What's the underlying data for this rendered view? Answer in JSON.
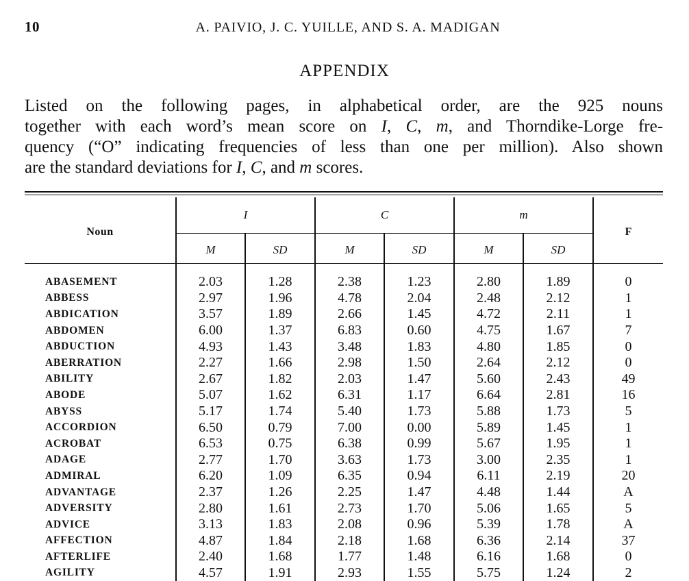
{
  "header": {
    "page_number": "10",
    "authors": "A. PAIVIO, J. C. YUILLE, AND S. A. MADIGAN"
  },
  "section_title": "APPENDIX",
  "intro": {
    "line1": "Listed on the following pages, in alphabetical order, are the 925 nouns",
    "line2_a": "together with each word’s mean score on ",
    "line2_i": "I",
    "line2_b": ", ",
    "line2_c": "C",
    "line2_d": ", ",
    "line2_m": "m",
    "line2_e": ", and Thorndike-Lorge fre-",
    "line3": "quency (“O” indicating frequencies of less than one per million).  Also shown",
    "line4_a": "are the standard deviations for ",
    "line4_i": "I",
    "line4_b": ", ",
    "line4_c": "C",
    "line4_d": ", and ",
    "line4_m": "m",
    "line4_e": " scores."
  },
  "table": {
    "noun_header": "Noun",
    "groups": [
      "I",
      "C",
      "m"
    ],
    "sub_m": "M",
    "sub_sd": "SD",
    "f_header": "F",
    "rows": [
      {
        "noun": "ABASEMENT",
        "i_m": "2.03",
        "i_sd": "1.28",
        "c_m": "2.38",
        "c_sd": "1.23",
        "m_m": "2.80",
        "m_sd": "1.89",
        "f": "0"
      },
      {
        "noun": "ABBESS",
        "i_m": "2.97",
        "i_sd": "1.96",
        "c_m": "4.78",
        "c_sd": "2.04",
        "m_m": "2.48",
        "m_sd": "2.12",
        "f": "1"
      },
      {
        "noun": "ABDICATION",
        "i_m": "3.57",
        "i_sd": "1.89",
        "c_m": "2.66",
        "c_sd": "1.45",
        "m_m": "4.72",
        "m_sd": "2.11",
        "f": "1"
      },
      {
        "noun": "ABDOMEN",
        "i_m": "6.00",
        "i_sd": "1.37",
        "c_m": "6.83",
        "c_sd": "0.60",
        "m_m": "4.75",
        "m_sd": "1.67",
        "f": "7"
      },
      {
        "noun": "ABDUCTION",
        "i_m": "4.93",
        "i_sd": "1.43",
        "c_m": "3.48",
        "c_sd": "1.83",
        "m_m": "4.80",
        "m_sd": "1.85",
        "f": "0"
      },
      {
        "noun": "ABERRATION",
        "i_m": "2.27",
        "i_sd": "1.66",
        "c_m": "2.98",
        "c_sd": "1.50",
        "m_m": "2.64",
        "m_sd": "2.12",
        "f": "0"
      },
      {
        "noun": "ABILITY",
        "i_m": "2.67",
        "i_sd": "1.82",
        "c_m": "2.03",
        "c_sd": "1.47",
        "m_m": "5.60",
        "m_sd": "2.43",
        "f": "49"
      },
      {
        "noun": "ABODE",
        "i_m": "5.07",
        "i_sd": "1.62",
        "c_m": "6.31",
        "c_sd": "1.17",
        "m_m": "6.64",
        "m_sd": "2.81",
        "f": "16"
      },
      {
        "noun": "ABYSS",
        "i_m": "5.17",
        "i_sd": "1.74",
        "c_m": "5.40",
        "c_sd": "1.73",
        "m_m": "5.88",
        "m_sd": "1.73",
        "f": "5"
      },
      {
        "noun": "ACCORDION",
        "i_m": "6.50",
        "i_sd": "0.79",
        "c_m": "7.00",
        "c_sd": "0.00",
        "m_m": "5.89",
        "m_sd": "1.45",
        "f": "1"
      },
      {
        "noun": "ACROBAT",
        "i_m": "6.53",
        "i_sd": "0.75",
        "c_m": "6.38",
        "c_sd": "0.99",
        "m_m": "5.67",
        "m_sd": "1.95",
        "f": "1"
      },
      {
        "noun": "ADAGE",
        "i_m": "2.77",
        "i_sd": "1.70",
        "c_m": "3.63",
        "c_sd": "1.73",
        "m_m": "3.00",
        "m_sd": "2.35",
        "f": "1"
      },
      {
        "noun": "ADMIRAL",
        "i_m": "6.20",
        "i_sd": "1.09",
        "c_m": "6.35",
        "c_sd": "0.94",
        "m_m": "6.11",
        "m_sd": "2.19",
        "f": "20"
      },
      {
        "noun": "ADVANTAGE",
        "i_m": "2.37",
        "i_sd": "1.26",
        "c_m": "2.25",
        "c_sd": "1.47",
        "m_m": "4.48",
        "m_sd": "1.44",
        "f": "A"
      },
      {
        "noun": "ADVERSITY",
        "i_m": "2.80",
        "i_sd": "1.61",
        "c_m": "2.73",
        "c_sd": "1.70",
        "m_m": "5.06",
        "m_sd": "1.65",
        "f": "5"
      },
      {
        "noun": "ADVICE",
        "i_m": "3.13",
        "i_sd": "1.83",
        "c_m": "2.08",
        "c_sd": "0.96",
        "m_m": "5.39",
        "m_sd": "1.78",
        "f": "A"
      },
      {
        "noun": "AFFECTION",
        "i_m": "4.87",
        "i_sd": "1.84",
        "c_m": "2.18",
        "c_sd": "1.68",
        "m_m": "6.36",
        "m_sd": "2.14",
        "f": "37"
      },
      {
        "noun": "AFTERLIFE",
        "i_m": "2.40",
        "i_sd": "1.68",
        "c_m": "1.77",
        "c_sd": "1.48",
        "m_m": "6.16",
        "m_sd": "1.68",
        "f": "0"
      },
      {
        "noun": "AGILITY",
        "i_m": "4.57",
        "i_sd": "1.91",
        "c_m": "2.93",
        "c_sd": "1.55",
        "m_m": "5.75",
        "m_sd": "1.24",
        "f": "2"
      }
    ]
  }
}
